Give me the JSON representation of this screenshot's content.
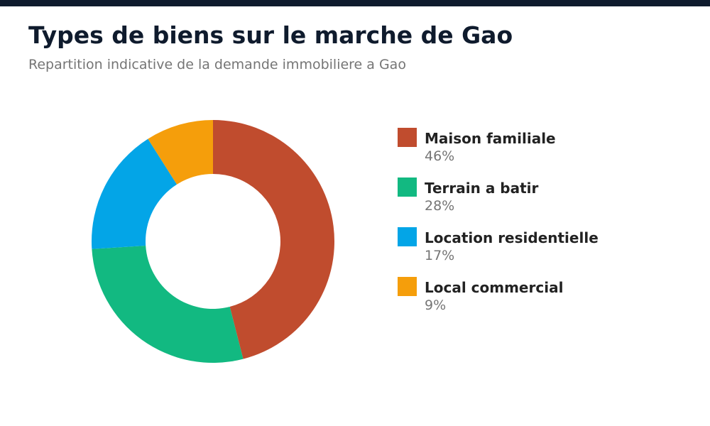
{
  "header": {
    "title": "Types de biens sur le marche de Gao",
    "subtitle": "Repartition indicative de la demande immobiliere a Gao"
  },
  "colors": {
    "top_bar": "#0f1b2d",
    "title": "#0f1b2d"
  },
  "chart_data": {
    "type": "pie",
    "variant": "donut",
    "title": "Types de biens sur le marche de Gao",
    "subtitle": "Repartition indicative de la demande immobiliere a Gao",
    "unit": "%",
    "legend_position": "right",
    "slices": [
      {
        "label": "Maison familiale",
        "value": 46,
        "value_label": "46%",
        "color": "#c04c2e"
      },
      {
        "label": "Terrain a batir",
        "value": 28,
        "value_label": "28%",
        "color": "#12b981"
      },
      {
        "label": "Location residentielle",
        "value": 17,
        "value_label": "17%",
        "color": "#03a5e7"
      },
      {
        "label": "Local commercial",
        "value": 9,
        "value_label": "9%",
        "color": "#f59e0b"
      }
    ]
  }
}
